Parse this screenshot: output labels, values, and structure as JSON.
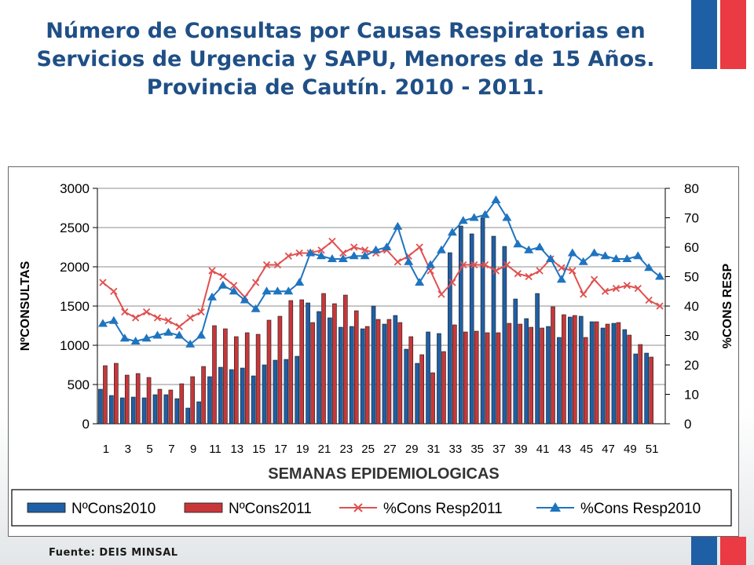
{
  "title": "Número de Consultas  por Causas Respiratorias en Servicios de Urgencia y SAPU, Menores de 15 Años. Provincia de Cautín. 2010 - 2011.",
  "source": "Fuente: DEIS MINSAL",
  "colors": {
    "title": "#1f4f86",
    "bar2010": "#1f5fa6",
    "bar2011": "#c7373a",
    "line2011": "#e05050",
    "line2010": "#1f74c0",
    "flag_blue": "#1f5fa6",
    "flag_red": "#ea3a43"
  },
  "chart_data": {
    "type": "bar",
    "xlabel": "SEMANAS EPIDEMIOLOGICAS",
    "ylabel": "NºCONSULTAS",
    "y2label": "%CONS RESP",
    "ylim": [
      0,
      3000
    ],
    "y2lim": [
      0,
      80
    ],
    "yticks": [
      "0",
      "500",
      "1000",
      "1500",
      "2000",
      "2500",
      "3000"
    ],
    "y2ticks": [
      "0",
      "10",
      "20",
      "30",
      "40",
      "50",
      "60",
      "70",
      "80"
    ],
    "xticks": [
      "1",
      "3",
      "5",
      "7",
      "9",
      "11",
      "13",
      "15",
      "17",
      "19",
      "21",
      "23",
      "25",
      "27",
      "29",
      "31",
      "33",
      "35",
      "37",
      "39",
      "41",
      "43",
      "45",
      "47",
      "49",
      "51"
    ],
    "weeks": [
      1,
      2,
      3,
      4,
      5,
      6,
      7,
      8,
      9,
      10,
      11,
      12,
      13,
      14,
      15,
      16,
      17,
      18,
      19,
      20,
      21,
      22,
      23,
      24,
      25,
      26,
      27,
      28,
      29,
      30,
      31,
      32,
      33,
      34,
      35,
      36,
      37,
      38,
      39,
      40,
      41,
      42,
      43,
      44,
      45,
      46,
      47,
      48,
      49,
      50,
      51,
      52
    ],
    "series": [
      {
        "name": "NºCons2010",
        "kind": "bar",
        "values": [
          440,
          360,
          330,
          340,
          330,
          370,
          370,
          320,
          200,
          280,
          600,
          720,
          690,
          710,
          610,
          750,
          810,
          820,
          860,
          1540,
          1430,
          1350,
          1230,
          1240,
          1210,
          1500,
          1270,
          1380,
          950,
          770,
          1170,
          1150,
          2180,
          2520,
          2420,
          2620,
          2390,
          2260,
          1590,
          1340,
          1660,
          1240,
          1100,
          1360,
          1370,
          1300,
          1220,
          1280,
          1200,
          890,
          900,
          0
        ]
      },
      {
        "name": "NºCons2011",
        "kind": "bar",
        "values": [
          740,
          770,
          620,
          640,
          590,
          440,
          430,
          510,
          600,
          730,
          1250,
          1210,
          1110,
          1160,
          1140,
          1320,
          1370,
          1570,
          1580,
          1290,
          1660,
          1530,
          1640,
          1440,
          1240,
          1330,
          1330,
          1290,
          1110,
          880,
          650,
          920,
          1260,
          1170,
          1180,
          1160,
          1160,
          1280,
          1270,
          1230,
          1220,
          1490,
          1390,
          1380,
          1100,
          1300,
          1270,
          1290,
          1130,
          1010,
          850,
          0
        ]
      },
      {
        "name": "%Cons Resp2011",
        "kind": "line",
        "values": [
          48,
          45,
          38,
          36,
          38,
          36,
          35,
          33,
          36,
          38,
          52,
          50,
          47,
          43,
          48,
          54,
          54,
          57,
          58,
          58,
          59,
          62,
          58,
          60,
          59,
          58,
          59,
          55,
          57,
          60,
          52,
          44,
          48,
          54,
          54,
          54,
          52,
          54,
          51,
          50,
          52,
          56,
          53,
          52,
          44,
          49,
          45,
          46,
          47,
          46,
          42,
          40
        ]
      },
      {
        "name": "%Cons Resp2010",
        "kind": "line",
        "values": [
          34,
          35,
          29,
          28,
          29,
          30,
          31,
          30,
          27,
          30,
          43,
          47,
          45,
          42,
          39,
          45,
          45,
          45,
          48,
          58,
          57,
          56,
          56,
          57,
          57,
          59,
          60,
          67,
          55,
          48,
          54,
          59,
          65,
          69,
          70,
          71,
          76,
          70,
          61,
          59,
          60,
          56,
          49,
          58,
          55,
          58,
          57,
          56,
          56,
          57,
          53,
          50
        ]
      }
    ]
  }
}
